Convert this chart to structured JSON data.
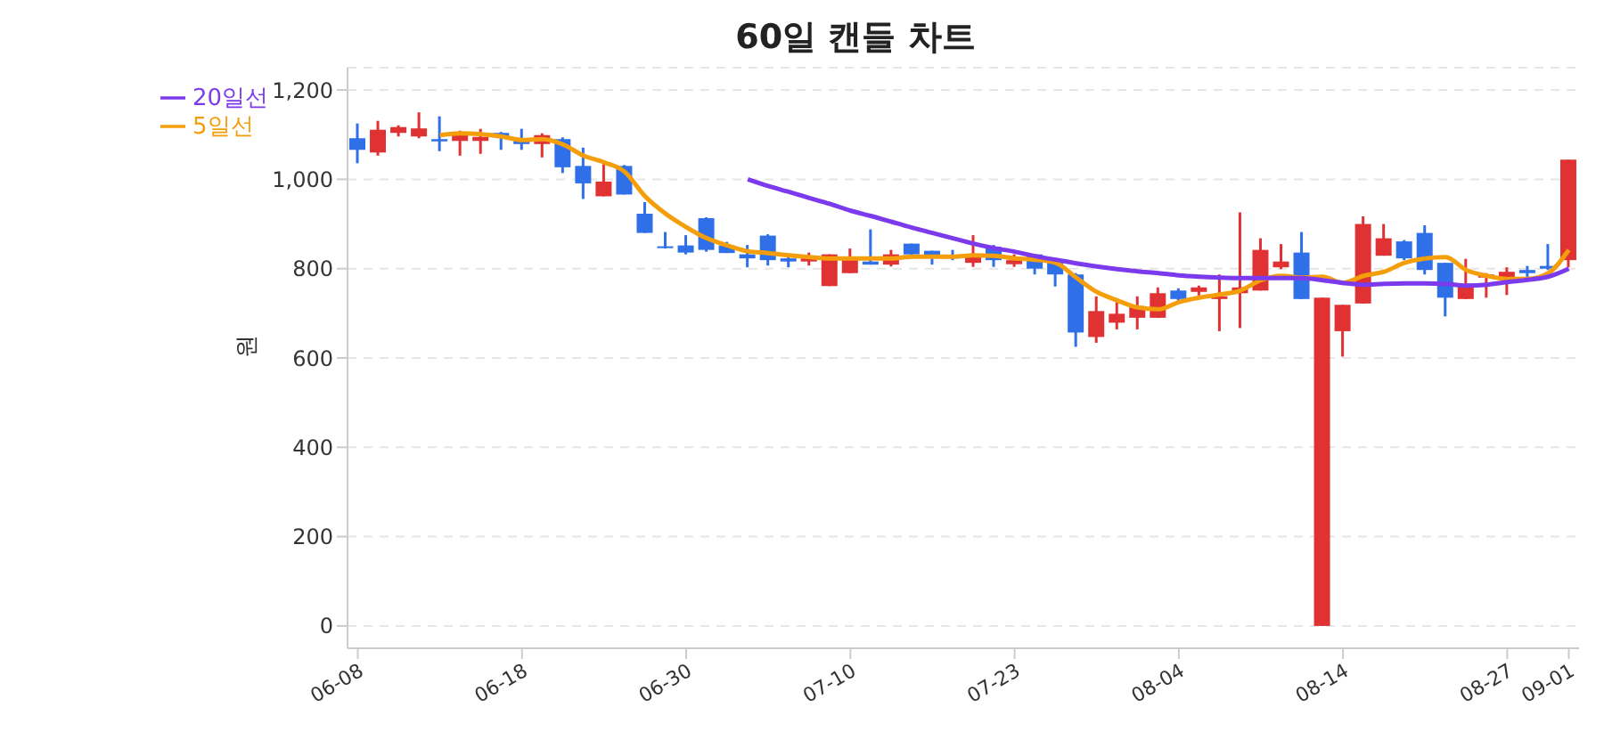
{
  "chart_data": {
    "type": "candlestick",
    "title": "60일 캔들 차트",
    "ylabel": "원",
    "categories": [
      "06-08",
      null,
      null,
      null,
      null,
      null,
      null,
      null,
      "06-18",
      null,
      null,
      null,
      null,
      null,
      null,
      null,
      "06-30",
      null,
      null,
      null,
      null,
      null,
      null,
      null,
      "07-10",
      null,
      null,
      null,
      null,
      null,
      null,
      null,
      "07-23",
      null,
      null,
      null,
      null,
      null,
      null,
      null,
      "08-04",
      null,
      null,
      null,
      null,
      null,
      null,
      null,
      "08-14",
      null,
      null,
      null,
      null,
      null,
      null,
      null,
      "08-27",
      null,
      null,
      "09-01"
    ],
    "ohlc": [
      [
        1092,
        1125,
        1036,
        1066
      ],
      [
        1060,
        1131,
        1053,
        1111
      ],
      [
        1104,
        1121,
        1096,
        1117
      ],
      [
        1096,
        1150,
        1092,
        1114
      ],
      [
        1090,
        1141,
        1063,
        1085
      ],
      [
        1086,
        1109,
        1053,
        1099
      ],
      [
        1086,
        1113,
        1057,
        1095
      ],
      [
        1104,
        1106,
        1066,
        1096
      ],
      [
        1092,
        1113,
        1066,
        1079
      ],
      [
        1079,
        1103,
        1049,
        1099
      ],
      [
        1090,
        1094,
        1014,
        1027
      ],
      [
        1030,
        1071,
        956,
        991
      ],
      [
        962,
        1034,
        962,
        995
      ],
      [
        1030,
        1032,
        966,
        966
      ],
      [
        923,
        949,
        880,
        880
      ],
      [
        850,
        882,
        845,
        846
      ],
      [
        852,
        875,
        832,
        836
      ],
      [
        913,
        915,
        838,
        842
      ],
      [
        852,
        860,
        835,
        835
      ],
      [
        832,
        853,
        803,
        823
      ],
      [
        874,
        877,
        807,
        819
      ],
      [
        823,
        832,
        803,
        816
      ],
      [
        816,
        836,
        807,
        826
      ],
      [
        761,
        832,
        761,
        832
      ],
      [
        790,
        845,
        790,
        823
      ],
      [
        816,
        888,
        809,
        809
      ],
      [
        809,
        842,
        805,
        832
      ],
      [
        856,
        856,
        829,
        832
      ],
      [
        840,
        840,
        809,
        826
      ],
      [
        830,
        842,
        819,
        823
      ],
      [
        813,
        875,
        804,
        826
      ],
      [
        849,
        853,
        804,
        819
      ],
      [
        810,
        832,
        804,
        819
      ],
      [
        832,
        832,
        787,
        800
      ],
      [
        813,
        823,
        760,
        787
      ],
      [
        787,
        790,
        625,
        657
      ],
      [
        647,
        738,
        634,
        705
      ],
      [
        679,
        725,
        664,
        699
      ],
      [
        690,
        738,
        664,
        716
      ],
      [
        690,
        758,
        690,
        745
      ],
      [
        751,
        756,
        721,
        732
      ],
      [
        748,
        762,
        740,
        758
      ],
      [
        732,
        787,
        660,
        738
      ],
      [
        745,
        926,
        667,
        758
      ],
      [
        751,
        868,
        751,
        842
      ],
      [
        803,
        855,
        799,
        816
      ],
      [
        836,
        882,
        732,
        732
      ],
      [
        0,
        735,
        0,
        735
      ],
      [
        660,
        719,
        603,
        719
      ],
      [
        722,
        917,
        722,
        900
      ],
      [
        829,
        900,
        829,
        868
      ],
      [
        861,
        864,
        819,
        823
      ],
      [
        880,
        897,
        787,
        797
      ],
      [
        813,
        813,
        693,
        735
      ],
      [
        732,
        822,
        732,
        761
      ],
      [
        780,
        790,
        735,
        787
      ],
      [
        777,
        803,
        741,
        793
      ],
      [
        797,
        806,
        777,
        790
      ],
      [
        806,
        855,
        797,
        800
      ],
      [
        819,
        1044,
        803,
        1044
      ]
    ],
    "colors": [
      "#2f6fe8",
      "#e03232",
      "#e03232",
      "#e03232",
      "#2f6fe8",
      "#e03232",
      "#e03232",
      "#2f6fe8",
      "#2f6fe8",
      "#e03232",
      "#2f6fe8",
      "#2f6fe8",
      "#e03232",
      "#2f6fe8",
      "#2f6fe8",
      "#2f6fe8",
      "#2f6fe8",
      "#2f6fe8",
      "#2f6fe8",
      "#2f6fe8",
      "#2f6fe8",
      "#2f6fe8",
      "#e03232",
      "#e03232",
      "#e03232",
      "#2f6fe8",
      "#e03232",
      "#2f6fe8",
      "#2f6fe8",
      "#2f6fe8",
      "#e03232",
      "#2f6fe8",
      "#e03232",
      "#2f6fe8",
      "#2f6fe8",
      "#2f6fe8",
      "#e03232",
      "#e03232",
      "#e03232",
      "#e03232",
      "#2f6fe8",
      "#e03232",
      "#e03232",
      "#e03232",
      "#e03232",
      "#e03232",
      "#2f6fe8",
      "#e03232",
      "#e03232",
      "#e03232",
      "#e03232",
      "#2f6fe8",
      "#2f6fe8",
      "#2f6fe8",
      "#e03232",
      "#e03232",
      "#e03232",
      "#2f6fe8",
      "#2f6fe8",
      "#e03232"
    ],
    "series": [
      {
        "type": "line",
        "name": "5일선",
        "color": "#f59e0b",
        "values": [
          null,
          null,
          null,
          null,
          1099,
          1103,
          1101,
          1096,
          1088,
          1090,
          1078,
          1053,
          1038,
          1017,
          962,
          923,
          893,
          868,
          852,
          839,
          835,
          830,
          826,
          823,
          823,
          823,
          823,
          827,
          827,
          827,
          830,
          829,
          823,
          820,
          813,
          780,
          748,
          729,
          713,
          709,
          725,
          735,
          742,
          751,
          774,
          784,
          780,
          782,
          768,
          784,
          793,
          813,
          823,
          826,
          797,
          784,
          777,
          777,
          790,
          842
        ]
      },
      {
        "type": "line",
        "name": "20일선",
        "color": "#7c3aed",
        "values": [
          null,
          null,
          null,
          null,
          null,
          null,
          null,
          null,
          null,
          null,
          null,
          null,
          null,
          null,
          null,
          null,
          null,
          null,
          null,
          1000,
          985,
          972,
          958,
          945,
          930,
          918,
          905,
          892,
          880,
          868,
          856,
          846,
          838,
          828,
          820,
          812,
          805,
          799,
          794,
          790,
          785,
          782,
          780,
          779,
          779,
          779,
          779,
          774,
          768,
          764,
          766,
          767,
          767,
          766,
          762,
          764,
          770,
          775,
          782,
          800
        ]
      }
    ],
    "ylim": [
      -50,
      1250
    ],
    "yticks": [
      0,
      200,
      400,
      600,
      800,
      {
        "value": 1000,
        "label": "1,000"
      },
      {
        "value": 1200,
        "label": "1,200"
      }
    ],
    "grid": "y",
    "legend": "top left",
    "line_style": "solid",
    "marker": "none"
  }
}
